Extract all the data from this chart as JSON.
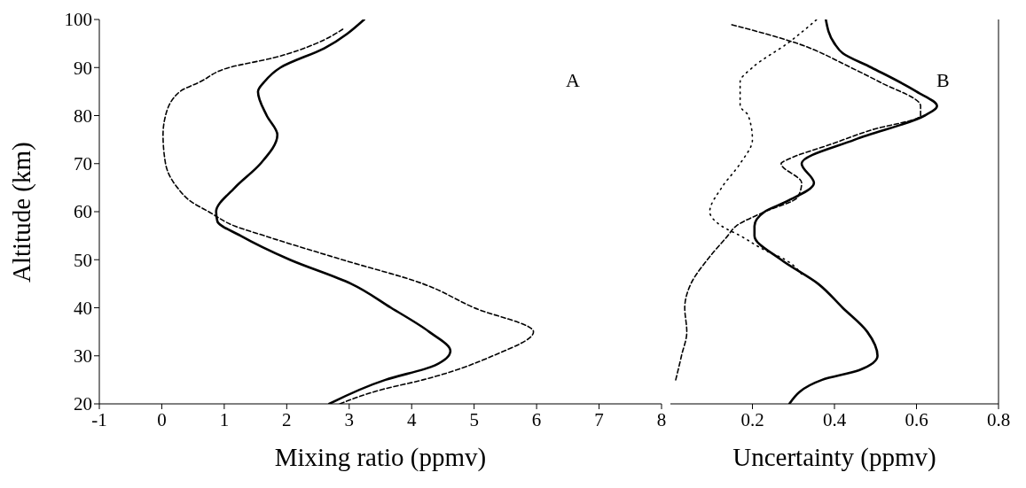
{
  "chart_data": [
    {
      "type": "line",
      "xlabel": "Mixing ratio (ppmv)",
      "ylabel": "Altitude (km)",
      "annotations": [
        "A"
      ],
      "xlim": [
        -1,
        8
      ],
      "xticks": [
        -1,
        0,
        1,
        2,
        3,
        4,
        5,
        6,
        7,
        8
      ],
      "ylim": [
        20,
        100
      ],
      "yticks": [
        20,
        30,
        40,
        50,
        60,
        70,
        80,
        90,
        100
      ],
      "grid": false,
      "legend": false,
      "marker": "none",
      "series": [
        {
          "color": "#000000",
          "line_style": "solid",
          "x": [
            2.68,
            3.58,
            4.37,
            4.62,
            4.28,
            3.67,
            3.03,
            2.05,
            1.26,
            0.89,
            0.87,
            1.17,
            1.58,
            1.85,
            1.68,
            1.54,
            1.64,
            1.9,
            2.6,
            3.24
          ],
          "values": [
            20,
            25,
            28,
            31,
            35,
            40,
            45,
            50,
            55,
            58,
            60,
            65,
            70,
            76,
            80,
            85,
            87,
            90,
            94,
            100
          ]
        },
        {
          "color": "#000000",
          "line_style": "dashed",
          "x": [
            2.85,
            3.53,
            4.18,
            5.3,
            5.95,
            5.0,
            4.18,
            2.89,
            1.64,
            1.17,
            0.75,
            0.48,
            0.25,
            0.06,
            0.02,
            0.06,
            0.29,
            0.61,
            1.08,
            1.78,
            2.47,
            2.9
          ],
          "values": [
            20,
            23,
            25,
            30,
            35,
            40,
            45,
            50,
            55,
            57,
            60,
            62,
            65,
            70,
            76,
            80,
            85,
            87,
            90,
            92,
            95,
            98
          ]
        }
      ]
    },
    {
      "type": "line",
      "xlabel": "Uncertainty (ppmv)",
      "annotations": [
        "B"
      ],
      "xlim": [
        0,
        0.8
      ],
      "xticks": [
        0.2,
        0.4,
        0.6,
        0.8
      ],
      "ylim": [
        20,
        100
      ],
      "yticks": [
        20,
        30,
        40,
        50,
        60,
        70,
        80,
        90,
        100
      ],
      "tick_labels": "x",
      "grid": false,
      "legend": false,
      "marker": "none",
      "series": [
        {
          "color": "#000000",
          "line_style": "solid",
          "x": [
            0.29,
            0.37,
            0.46,
            0.505,
            0.48,
            0.42,
            0.36,
            0.27,
            0.205,
            0.205,
            0.23,
            0.28,
            0.35,
            0.32,
            0.45,
            0.62,
            0.65,
            0.6,
            0.49,
            0.42,
            0.4,
            0.379
          ],
          "values": [
            20,
            25,
            27,
            30,
            35,
            40,
            45,
            50,
            55,
            57,
            60,
            62,
            66,
            70,
            75,
            80,
            82,
            85,
            90,
            93,
            95,
            100
          ]
        },
        {
          "color": "#000000",
          "line_style": "dashed",
          "x": [
            0.013,
            0.027,
            0.04,
            0.035,
            0.05,
            0.09,
            0.14,
            0.16,
            0.23,
            0.31,
            0.32,
            0.27,
            0.29,
            0.39,
            0.49,
            0.61,
            0.61,
            0.51,
            0.44,
            0.31,
            0.146
          ],
          "values": [
            25,
            30,
            35,
            40,
            45,
            50,
            55,
            57,
            60,
            63,
            66,
            70,
            71,
            74,
            77,
            80,
            82,
            87,
            90,
            95,
            99
          ]
        },
        {
          "color": "#000000",
          "line_style": "dotted",
          "x": [
            0.32,
            0.28,
            0.23,
            0.17,
            0.125,
            0.096,
            0.125,
            0.17,
            0.2,
            0.19,
            0.17,
            0.17,
            0.2,
            0.285,
            0.357
          ],
          "values": [
            47,
            50,
            52,
            55,
            57,
            60,
            65,
            70,
            75,
            80,
            82,
            87,
            90,
            95,
            100
          ]
        }
      ]
    }
  ]
}
